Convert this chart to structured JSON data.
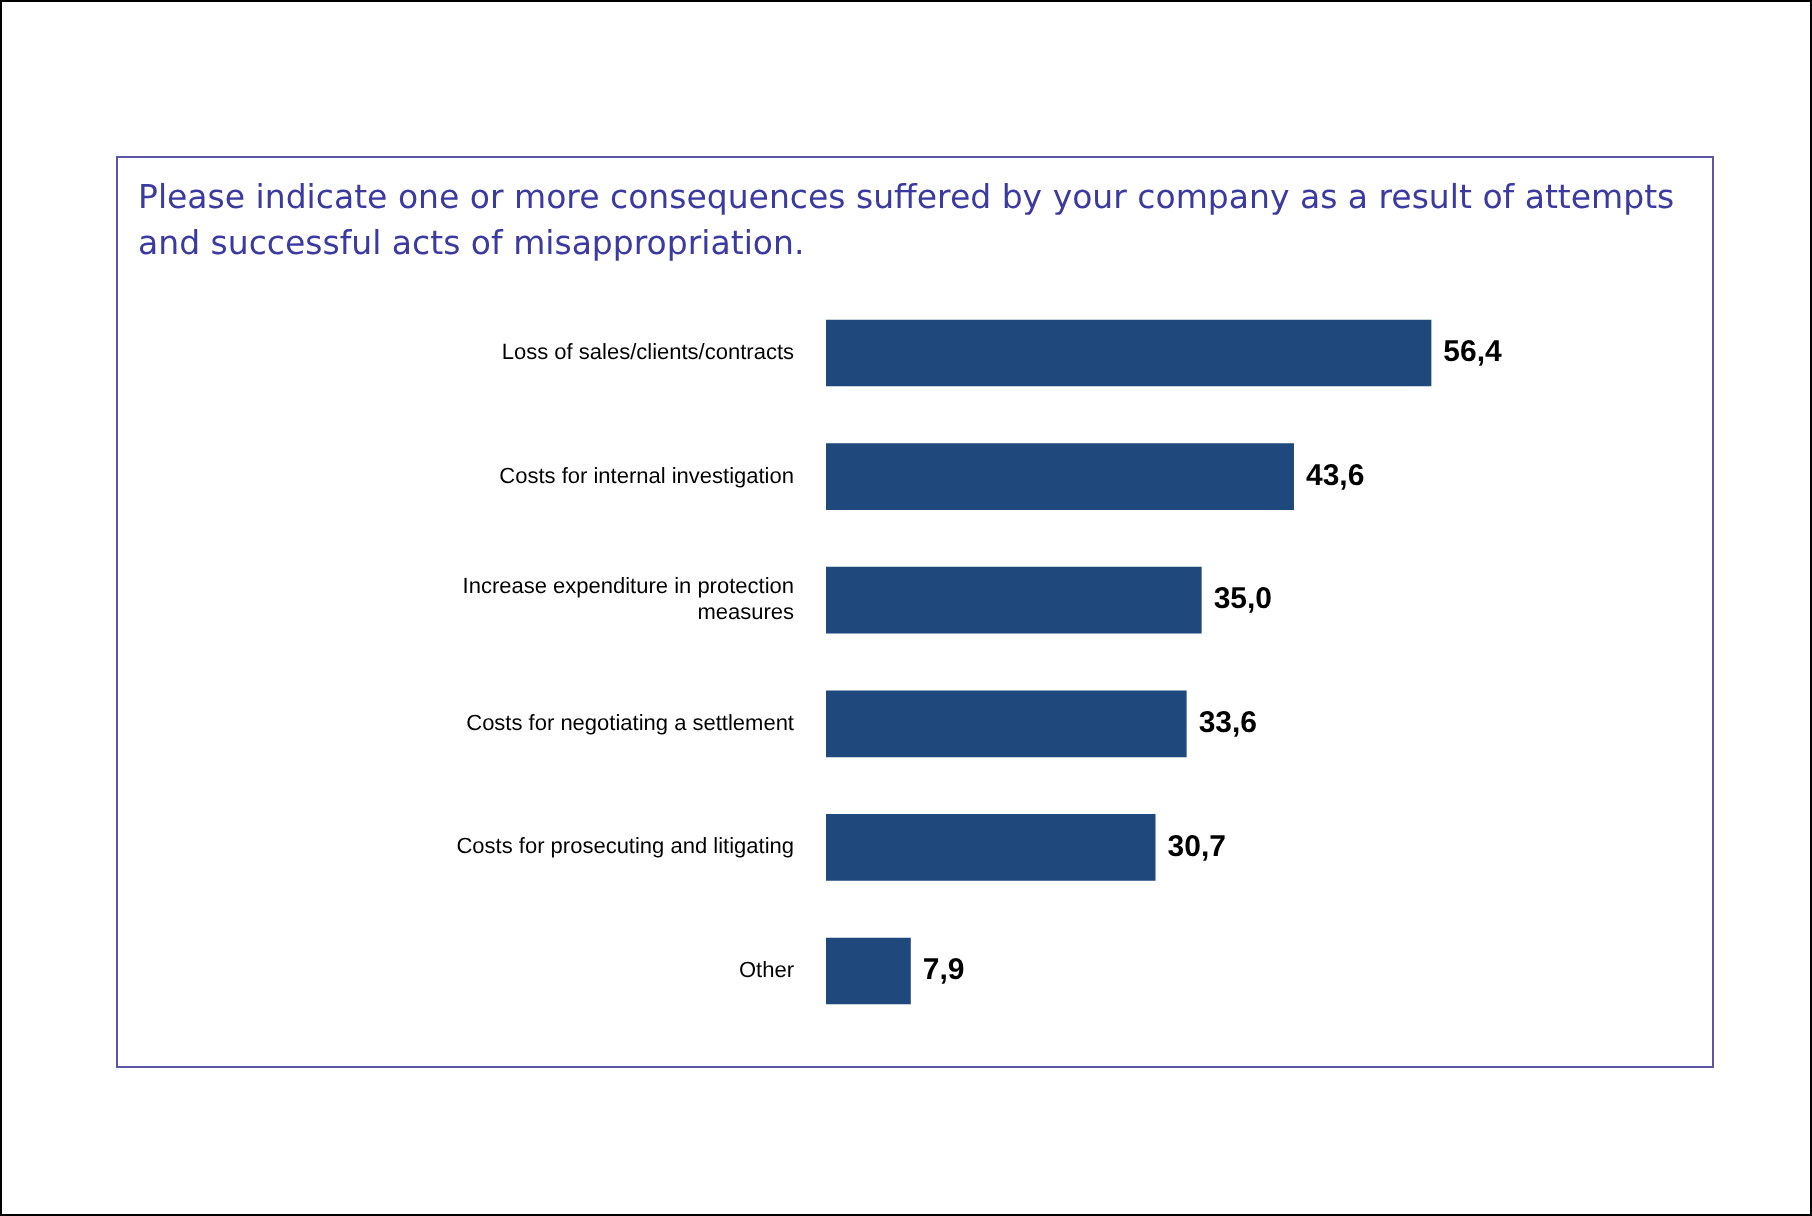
{
  "chart_data": {
    "type": "bar",
    "orientation": "horizontal",
    "title": "Please indicate one or more consequences suffered by your company as a result of attempts and successful acts of misappropriation.",
    "categories": [
      "Loss of sales/clients/contracts",
      "Costs for internal investigation",
      "Increase expenditure in protection measures",
      "Costs for negotiating a settlement",
      "Costs for prosecuting and litigating",
      "Other"
    ],
    "values": [
      56.4,
      43.6,
      35.0,
      33.6,
      30.7,
      7.9
    ],
    "value_labels": [
      "56,4",
      "43,6",
      "35,0",
      "33,6",
      "30,7",
      "7,9"
    ],
    "color": "#1f497d"
  }
}
